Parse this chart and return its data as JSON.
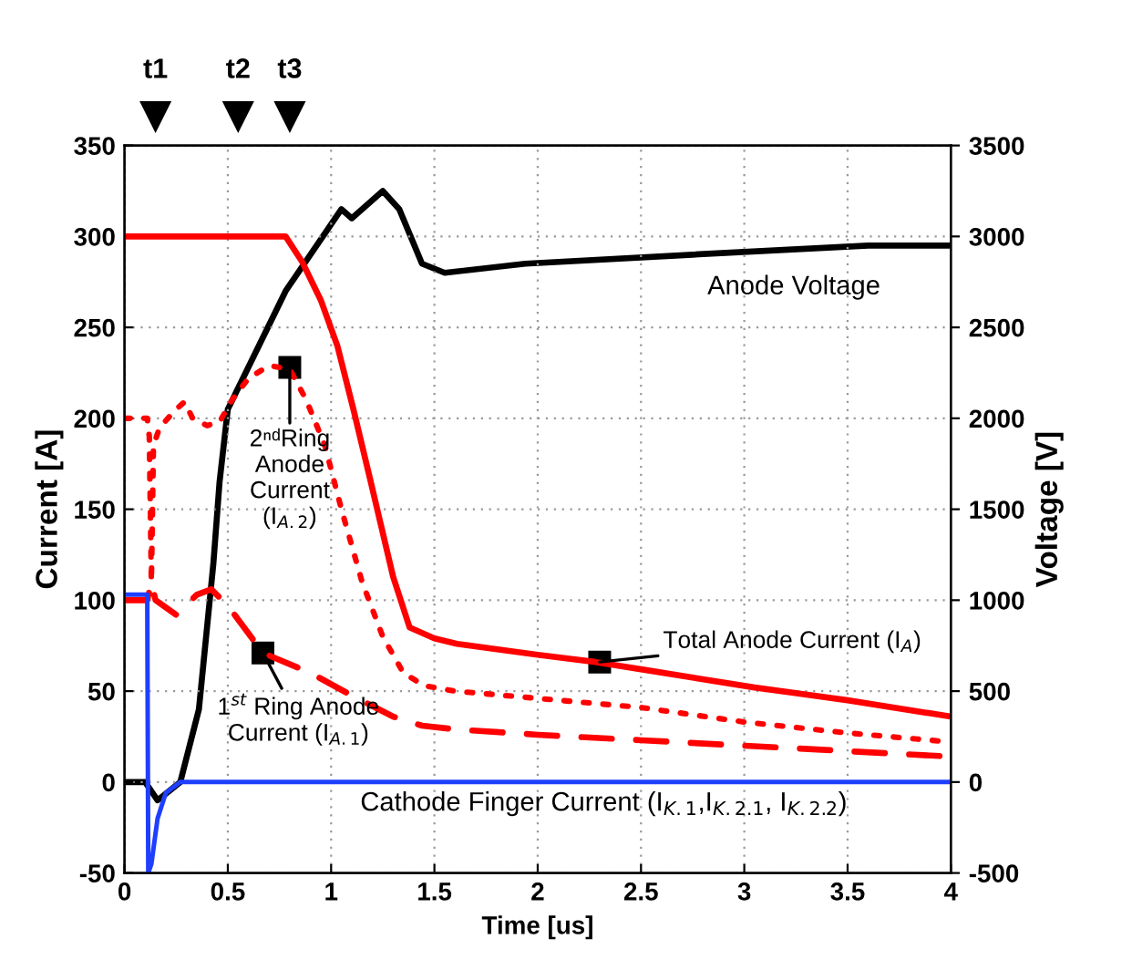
{
  "chart_data": {
    "type": "line",
    "xlabel": "Time [us]",
    "ylabel": "Current [A]",
    "y2label": "Voltage [V]",
    "xlim": [
      0,
      4
    ],
    "xticks": [
      0,
      0.5,
      1,
      1.5,
      2,
      2.5,
      3,
      3.5,
      4
    ],
    "ylim": [
      -50,
      350
    ],
    "yticks": [
      -50,
      0,
      50,
      100,
      150,
      200,
      250,
      300,
      350
    ],
    "y2lim": [
      -500,
      3500
    ],
    "y2ticks": [
      -500,
      0,
      500,
      1000,
      1500,
      2000,
      2500,
      3000,
      3500
    ],
    "grid": true,
    "legend": false,
    "marker": "none",
    "series": [
      {
        "color": "#ff0000",
        "line_style": "solid",
        "x": [
          0,
          0.78,
          0.86,
          0.95,
          1.03,
          1.11,
          1.19,
          1.3,
          1.38,
          1.5,
          1.61,
          2,
          2.28,
          2.5,
          3.05,
          3.5,
          4
        ],
        "values": [
          300,
          300,
          286,
          265,
          240,
          204,
          166,
          113,
          85,
          79,
          76,
          70,
          66,
          62,
          52,
          45,
          36
        ]
      },
      {
        "color": "#ff0000",
        "line_style": "dotted",
        "x": [
          0,
          0.11,
          0.12,
          0.13,
          0.14,
          0.17,
          0.25,
          0.29,
          0.33,
          0.4,
          0.46,
          0.52,
          0.6,
          0.7,
          0.8,
          0.88,
          0.97,
          1.05,
          1.15,
          1.25,
          1.35,
          1.45,
          1.6,
          2,
          2.5,
          3,
          3.5,
          4
        ],
        "values": [
          200,
          200,
          190,
          110,
          185,
          195,
          205,
          209,
          200,
          196,
          198,
          210,
          222,
          229,
          227,
          210,
          185,
          150,
          110,
          80,
          60,
          53,
          50,
          46,
          41,
          33,
          27,
          22
        ]
      },
      {
        "color": "#ff0000",
        "line_style": "dashed",
        "x": [
          0,
          0.11,
          0.13,
          0.15,
          0.25,
          0.35,
          0.42,
          0.5,
          0.67,
          0.9,
          1.11,
          1.3,
          1.44,
          1.6,
          2,
          2.5,
          3,
          3.5,
          4
        ],
        "values": [
          100,
          100,
          110,
          100,
          92,
          103,
          106,
          97,
          71,
          60,
          47,
          36,
          31,
          29,
          26,
          23,
          20,
          17,
          14
        ]
      },
      {
        "color": "#1f3fff",
        "line_style": "solid",
        "x": [
          0,
          0.11,
          0.115,
          0.13,
          0.16,
          0.2,
          0.27,
          4
        ],
        "values": [
          103,
          103,
          -50,
          -45,
          -20,
          -6,
          0,
          0
        ]
      },
      {
        "color": "#000000",
        "line_style": "solid",
        "axis": "y2",
        "x": [
          0,
          0.1,
          0.16,
          0.27,
          0.36,
          0.43,
          0.46,
          0.5,
          0.78,
          1.05,
          1.1,
          1.25,
          1.33,
          1.44,
          1.55,
          1.94,
          2.75,
          3.6,
          4
        ],
        "values": [
          0,
          0,
          -100,
          0,
          400,
          1200,
          1650,
          2050,
          2700,
          3150,
          3100,
          3250,
          3150,
          2850,
          2800,
          2850,
          2900,
          2950,
          2950
        ]
      }
    ],
    "annotations": [
      "t1",
      "t2",
      "t3",
      {
        "text": "2ⁿᵈRing\nAnode\nCurrent\n(I$_{A.2}$)",
        "x": 0.8,
        "y": 228
      },
      {
        "text": "1$^{st}$ Ring Anode\nCurrent (I$_{A.1}$)",
        "x": 0.67,
        "y": 71
      },
      {
        "text": "Total Anode Current (I$_{A}$)",
        "x": 2.3,
        "y": 66
      },
      "Anode Voltage",
      "Cathode Finger Current (I$_{K.1}$,I$_{K.2.1}$, I$_{K.2.2}$)"
    ]
  }
}
